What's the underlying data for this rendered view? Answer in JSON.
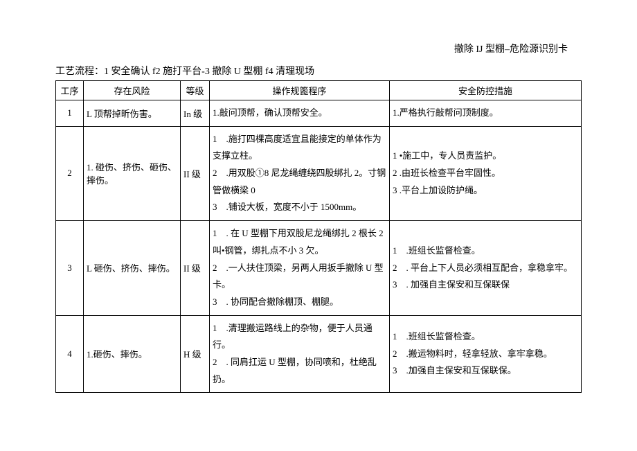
{
  "header": {
    "title": "撤除 IJ 型棚–危险源识别卡"
  },
  "process": {
    "label": "工艺流程：1 安全确认 f2 施打平台-3 撤除 U 型棚 f4 清理现场"
  },
  "table": {
    "columns": {
      "seq": "工序",
      "risk": "存在风险",
      "level": "等级",
      "procedure": "操作规篦程序",
      "measure": "安全防控措施"
    },
    "rows": [
      {
        "seq": "1",
        "risk": "L 顶帮掉昕伤害。",
        "level": "In 级",
        "procedure": "1.敲问顶帮，确认顶帮安全。",
        "measure": "1.严格执行敲帮问顶制度。"
      },
      {
        "seq": "2",
        "risk": "1. 碰伤、挤伤、砸伤、摔伤。",
        "level": "II 级",
        "procedure": "1　.施打四棵高度适宜且能接定的单体作为支撑立柱。\n2　.用双股①8 尼龙绳缠绕四股绑扎 2。寸钢管做横梁 0\n3　.铺设大板，宽度不小于 1500mm。",
        "measure": "1 •施工中，专人员责监护。\n2 .由班长检查平台牢固性。\n3 .平台上加设防护绳。"
      },
      {
        "seq": "3",
        "risk": "L 砸伤、挤伤、摔伤。",
        "level": "II 级",
        "procedure": "1　. 在 U 型棚下用双股尼龙绳绑扎 2 根长 2 叫•钢管，绑扎点不小 3 欠。\n2　.一人扶住顶梁，另两人用扳手撤除 U 型卡。\n3　. 协同配合撤除棚顶、棚腿。",
        "measure": "1　.班组长监督检查。\n2　. 平台上下人员必须相互配合，拿稳拿牢。\n3　. 加强自主保安和互保联保"
      },
      {
        "seq": "4",
        "risk": "1.砸伤、摔伤。",
        "level": "H 级",
        "procedure": "1　.清理搬运路线上的杂物，便于人员通行。\n2　. 同肩扛运 U 型棚，协同喷和，杜绝乱扔。",
        "measure": "1　.班组长监督检查。\n2　.搬运物料时，轻拿轻放、拿牢拿稳。\n3　.加强自主保安和互保联保。"
      }
    ]
  }
}
